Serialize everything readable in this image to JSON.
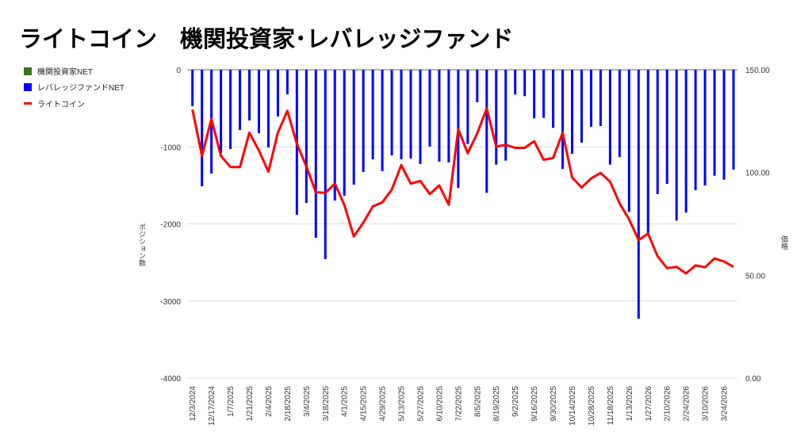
{
  "title": "ライトコイン　機関投資家･レバレッジファンド",
  "legend": [
    {
      "label": "機関投資家NET",
      "color": "#38761d",
      "kind": "bar"
    },
    {
      "label": "レバレッジファンドNET",
      "color": "#0000ff",
      "kind": "bar"
    },
    {
      "label": "ライトコイン",
      "color": "#ff0000",
      "kind": "line"
    }
  ],
  "chart_data": {
    "type": "bar+line",
    "title": "ライトコイン　機関投資家･レバレッジファンド",
    "ylabel_left": "ポジション数",
    "ylabel_right": "価格",
    "ylim_left": [
      -4000,
      0
    ],
    "yticks_left": [
      "0",
      "-1000",
      "-2000",
      "-3000",
      "-4000"
    ],
    "ylim_right": [
      0,
      150
    ],
    "yticks_right": [
      "150.00",
      "100.00",
      "50.00",
      "0.00"
    ],
    "grid": true,
    "legend_position": "left",
    "x_tick_labels": [
      "12/3/2024",
      "12/17/2024",
      "1/7/2025",
      "1/21/2025",
      "2/4/2025",
      "2/18/2025",
      "3/4/2025",
      "3/18/2025",
      "4/1/2025",
      "4/15/2025",
      "4/29/2025",
      "5/13/2025",
      "5/27/2025",
      "6/10/2025",
      "7/22/2025",
      "8/5/2025",
      "8/19/2025",
      "9/2/2025",
      "9/16/2025",
      "9/30/2025",
      "10/14/2025",
      "10/28/2025",
      "11/18/2025",
      "1/13/2026",
      "1/27/2026",
      "2/10/2026",
      "2/24/2026",
      "3/10/2026",
      "3/24/2026"
    ],
    "series": [
      {
        "name": "機関投資家NET",
        "type": "bar",
        "axis": "left",
        "values": []
      },
      {
        "name": "レバレッジファンドNET",
        "type": "bar",
        "axis": "left",
        "values": [
          -473,
          -1512,
          -1347,
          -1080,
          -1028,
          -781,
          -658,
          -823,
          -1008,
          -607,
          -319,
          -1882,
          -1728,
          -2180,
          -2457,
          -1697,
          -1635,
          -1491,
          -1326,
          -1162,
          -1316,
          -1111,
          -1162,
          -1152,
          -1224,
          -997,
          -1193,
          -1203,
          -1532,
          -963,
          -422,
          -1597,
          -1231,
          -1179,
          -322,
          -343,
          -630,
          -624,
          -754,
          -1288,
          -1090,
          -946,
          -740,
          -730,
          -1231,
          -1134,
          -1844,
          -3229,
          -2146,
          -1614,
          -1481,
          -1957,
          -1854,
          -1563,
          -1501,
          -1375,
          -1426,
          -1296
        ]
      },
      {
        "name": "ライトコイン",
        "type": "line",
        "axis": "right",
        "values": [
          130.6,
          108.1,
          126.1,
          108.1,
          102.7,
          102.7,
          119.4,
          110.7,
          100.4,
          119.4,
          130.0,
          113.9,
          103.0,
          90.4,
          90.1,
          94.6,
          84.3,
          68.9,
          75.6,
          83.5,
          85.5,
          91.7,
          103.6,
          94.6,
          95.9,
          89.5,
          93.7,
          84.3,
          121.0,
          109.4,
          119.0,
          131.2,
          112.6,
          113.5,
          112.0,
          112.0,
          115.2,
          106.2,
          107.1,
          119.4,
          97.6,
          92.7,
          97.1,
          99.8,
          95.5,
          85.0,
          77.2,
          67.2,
          70.2,
          59.3,
          53.5,
          54.1,
          50.9,
          54.8,
          53.9,
          58.2,
          56.7,
          54.1
        ]
      }
    ]
  }
}
